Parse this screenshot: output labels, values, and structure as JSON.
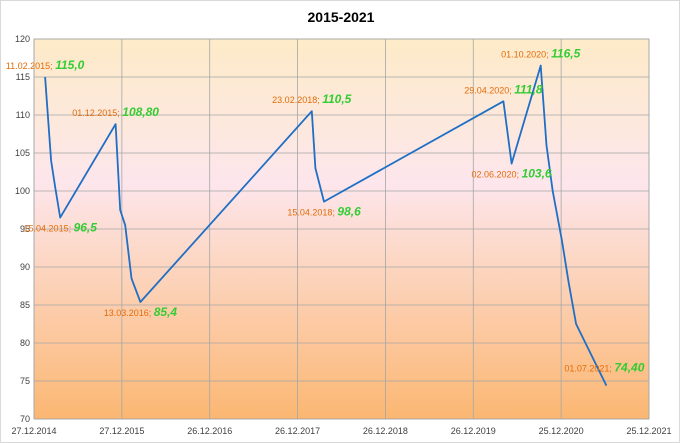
{
  "chart_data": {
    "type": "line",
    "title": "2015-2021",
    "xlabel": "",
    "ylabel": "",
    "ylim": [
      70,
      120
    ],
    "y_ticks": [
      70,
      75,
      80,
      85,
      90,
      95,
      100,
      105,
      110,
      115,
      120
    ],
    "x_ticks": [
      {
        "date": "2014-12-27",
        "label": "27.12.2014"
      },
      {
        "date": "2015-12-27",
        "label": "27.12.2015"
      },
      {
        "date": "2016-12-26",
        "label": "26.12.2016"
      },
      {
        "date": "2017-12-26",
        "label": "26.12.2017"
      },
      {
        "date": "2018-12-26",
        "label": "26.12.2018"
      },
      {
        "date": "2019-12-26",
        "label": "26.12.2019"
      },
      {
        "date": "2020-12-25",
        "label": "25.12.2020"
      },
      {
        "date": "2021-12-25",
        "label": "25.12.2021"
      }
    ],
    "xlim": [
      "2014-12-27",
      "2021-12-25"
    ],
    "grid": true,
    "legend": "none",
    "line_color": "#1f6fc5",
    "background_gradient": [
      "#fdebc8",
      "#fde6ec",
      "#fbb772"
    ],
    "series": [
      {
        "points": [
          {
            "date": "2015-02-11",
            "y": 115.0
          },
          {
            "date": "2015-03-08",
            "y": 104.0
          },
          {
            "date": "2015-03-25",
            "y": 100.5
          },
          {
            "date": "2015-04-15",
            "y": 96.5
          },
          {
            "date": "2015-12-01",
            "y": 108.8
          },
          {
            "date": "2015-12-20",
            "y": 97.5
          },
          {
            "date": "2016-01-10",
            "y": 95.5
          },
          {
            "date": "2016-02-05",
            "y": 88.5
          },
          {
            "date": "2016-03-13",
            "y": 85.4
          },
          {
            "date": "2018-02-23",
            "y": 110.5
          },
          {
            "date": "2018-03-10",
            "y": 103.0
          },
          {
            "date": "2018-04-15",
            "y": 98.6
          },
          {
            "date": "2020-04-29",
            "y": 111.8
          },
          {
            "date": "2020-06-02",
            "y": 103.6
          },
          {
            "date": "2020-10-01",
            "y": 116.5
          },
          {
            "date": "2020-10-25",
            "y": 106.0
          },
          {
            "date": "2020-11-20",
            "y": 100.0
          },
          {
            "date": "2020-12-28",
            "y": 93.5
          },
          {
            "date": "2021-01-25",
            "y": 88.0
          },
          {
            "date": "2021-02-25",
            "y": 82.5
          },
          {
            "date": "2021-07-01",
            "y": 74.4
          }
        ]
      }
    ],
    "annotations": [
      {
        "date": "2015-02-11",
        "y": 115.0,
        "date_label": "11.02.2015;",
        "value_label": "115,0",
        "position": "above"
      },
      {
        "date": "2015-04-15",
        "y": 96.5,
        "date_label": "15.04.2015;",
        "value_label": "96,5",
        "position": "below"
      },
      {
        "date": "2015-12-01",
        "y": 108.8,
        "date_label": "01.12.2015;",
        "value_label": "108,80",
        "position": "above"
      },
      {
        "date": "2016-03-13",
        "y": 85.4,
        "date_label": "13.03.2016;",
        "value_label": "85,4",
        "position": "below"
      },
      {
        "date": "2018-02-23",
        "y": 110.5,
        "date_label": "23.02.2018;",
        "value_label": "110,5",
        "position": "above"
      },
      {
        "date": "2018-04-15",
        "y": 98.6,
        "date_label": "15.04.2018;",
        "value_label": "98,6",
        "position": "below"
      },
      {
        "date": "2020-04-29",
        "y": 111.8,
        "date_label": "29.04.2020;",
        "value_label": "111,8",
        "position": "above"
      },
      {
        "date": "2020-06-02",
        "y": 103.6,
        "date_label": "02.06.2020;",
        "value_label": "103,6",
        "position": "below"
      },
      {
        "date": "2020-10-01",
        "y": 116.5,
        "date_label": "01.10.2020;",
        "value_label": "116,5",
        "position": "above"
      },
      {
        "date": "2021-07-01",
        "y": 74.4,
        "date_label": "01.07.2021;",
        "value_label": "74,40",
        "position": "above-left"
      }
    ]
  }
}
